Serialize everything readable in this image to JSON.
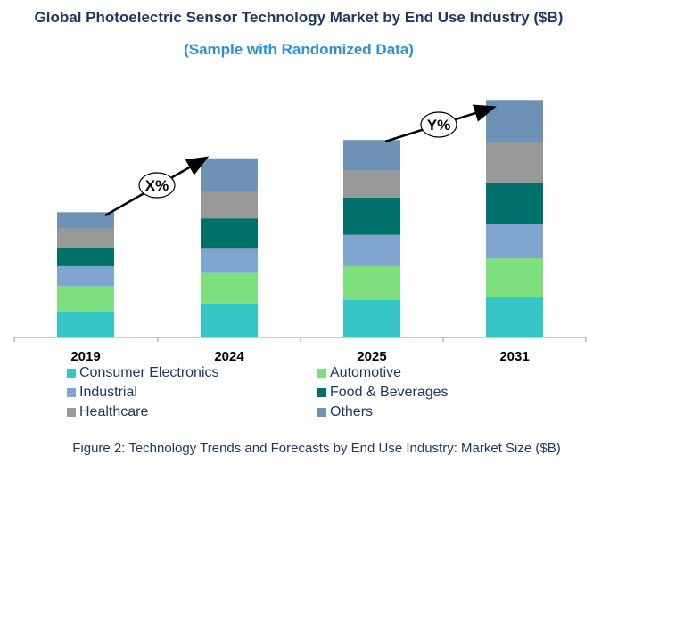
{
  "title": "Global Photoelectric Sensor Technology Market by End Use Industry ($B)",
  "subtitle": "(Sample with Randomized Data)",
  "caption": "Figure 2: Technology  Trends  and Forecasts by End Use Industry:  Market Size ($B)",
  "annotations": [
    {
      "label": "X%",
      "from": "2019",
      "to": "2024"
    },
    {
      "label": "Y%",
      "from": "2025",
      "to": "2031"
    }
  ],
  "chart_data": {
    "type": "bar",
    "stacked": true,
    "categories": [
      "2019",
      "2024",
      "2025",
      "2031"
    ],
    "ylim": [
      0,
      130
    ],
    "grid": false,
    "legend_position": "bottom",
    "series": [
      {
        "name": "Consumer Electronics",
        "color": "#36c6c6",
        "values": [
          15.0,
          19.5,
          21.5,
          23.5
        ]
      },
      {
        "name": "Automotive",
        "color": "#7ddf7d",
        "values": [
          14.5,
          17.5,
          19.5,
          22.0
        ]
      },
      {
        "name": "Industrial",
        "color": "#7fa4cf",
        "values": [
          11.5,
          14.0,
          18.0,
          19.5
        ]
      },
      {
        "name": "Food & Beverages",
        "color": "#00706a",
        "values": [
          10.5,
          17.5,
          21.5,
          24.0
        ]
      },
      {
        "name": "Healthcare",
        "color": "#999999",
        "values": [
          11.0,
          15.5,
          15.5,
          23.5
        ]
      },
      {
        "name": "Others",
        "color": "#6d92b5",
        "values": [
          9.5,
          19.0,
          17.5,
          24.0
        ]
      }
    ]
  }
}
